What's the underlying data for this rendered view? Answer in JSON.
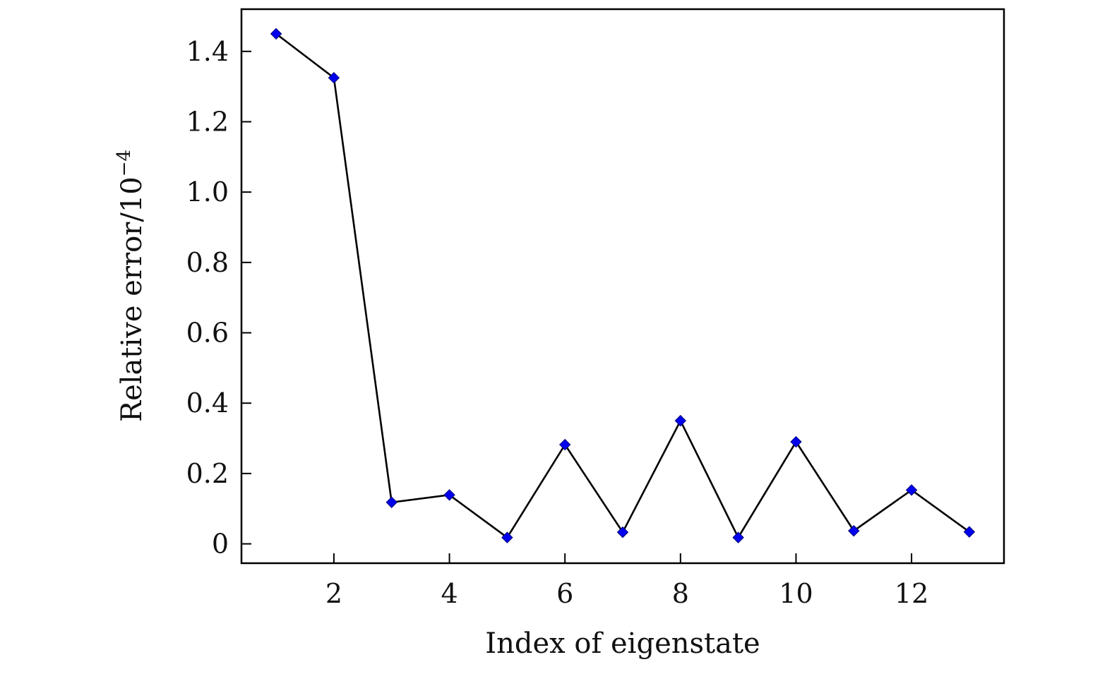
{
  "chart_data": {
    "type": "line",
    "xlabel": "Index of eigenstate",
    "ylabel": "Relative error/10",
    "ylabel_exponent": "−4",
    "xlim": [
      0.4,
      13.6
    ],
    "ylim": [
      -0.055,
      1.52
    ],
    "x_ticks": [
      2,
      4,
      6,
      8,
      10,
      12
    ],
    "y_ticks": [
      0,
      0.2,
      0.4,
      0.6,
      0.8,
      1.0,
      1.2,
      1.4
    ],
    "y_tick_labels": [
      "0",
      "0.2",
      "0.4",
      "0.6",
      "0.8",
      "1.0",
      "1.2",
      "1.4"
    ],
    "grid": false,
    "legend": "none",
    "series": [
      {
        "x": [
          1,
          2,
          3,
          4,
          5,
          6,
          7,
          8,
          9,
          10,
          11,
          12,
          13
        ],
        "y": [
          1.45,
          1.325,
          0.118,
          0.139,
          0.018,
          0.282,
          0.033,
          0.35,
          0.018,
          0.29,
          0.037,
          0.153,
          0.034
        ],
        "line_color": "#000000",
        "marker": "diamond",
        "marker_color": "#0000ee"
      }
    ]
  }
}
